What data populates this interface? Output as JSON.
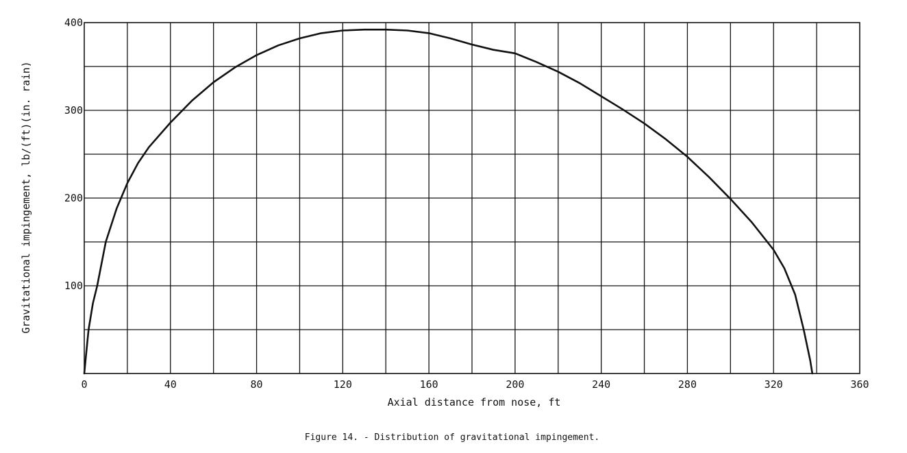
{
  "colors": {
    "ink": "#111111",
    "background": "#ffffff"
  },
  "chart_data": {
    "type": "line",
    "title": "",
    "caption": "Figure 14. - Distribution of gravitational impingement.",
    "xlabel": "Axial distance from nose, ft",
    "ylabel": "Gravitational impingement, lb/(ft)(in. rain)",
    "xlim": [
      0,
      360
    ],
    "ylim": [
      0,
      400
    ],
    "x_tick_values": [
      0,
      40,
      80,
      120,
      160,
      200,
      240,
      280,
      320,
      360
    ],
    "x_tick_labels": [
      "0",
      "40",
      "80",
      "120",
      "160",
      "200",
      "240",
      "280",
      "320",
      "360"
    ],
    "y_tick_values": [
      100,
      200,
      300,
      400
    ],
    "y_tick_labels": [
      "100",
      "200",
      "300",
      "400"
    ],
    "x_grid_step": 20,
    "y_grid_step": 50,
    "grid": true,
    "legend": "none",
    "series": [
      {
        "x": [
          0,
          1,
          2,
          4,
          6,
          10,
          15,
          20,
          25,
          30,
          40,
          50,
          60,
          70,
          80,
          90,
          100,
          110,
          120,
          130,
          140,
          150,
          160,
          170,
          180,
          190,
          200,
          210,
          220,
          230,
          240,
          250,
          260,
          270,
          280,
          290,
          300,
          310,
          320,
          325,
          330,
          334,
          337,
          338
        ],
        "y": [
          0,
          25,
          50,
          80,
          100,
          150,
          188,
          217,
          240,
          258,
          286,
          311,
          332,
          349,
          363,
          374,
          382,
          388,
          391,
          392,
          392,
          391,
          388,
          382,
          375,
          369,
          365,
          355,
          344,
          331,
          316,
          301,
          285,
          267,
          247,
          224,
          199,
          172,
          141,
          120,
          90,
          50,
          15,
          0
        ]
      }
    ]
  }
}
